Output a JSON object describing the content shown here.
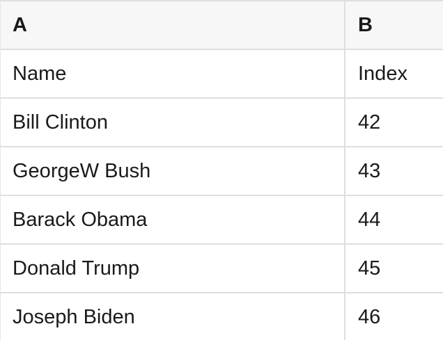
{
  "table": {
    "columns": [
      "A",
      "B"
    ],
    "rows": [
      [
        "Name",
        "Index"
      ],
      [
        "Bill Clinton",
        "42"
      ],
      [
        "GeorgeW Bush",
        "43"
      ],
      [
        "Barack Obama",
        "44"
      ],
      [
        "Donald Trump",
        "45"
      ],
      [
        "Joseph Biden",
        "46"
      ]
    ]
  },
  "colors": {
    "background": "#ffffff",
    "header_background": "#f7f7f7",
    "border": "#dedede",
    "text": "#1a1a1a"
  }
}
